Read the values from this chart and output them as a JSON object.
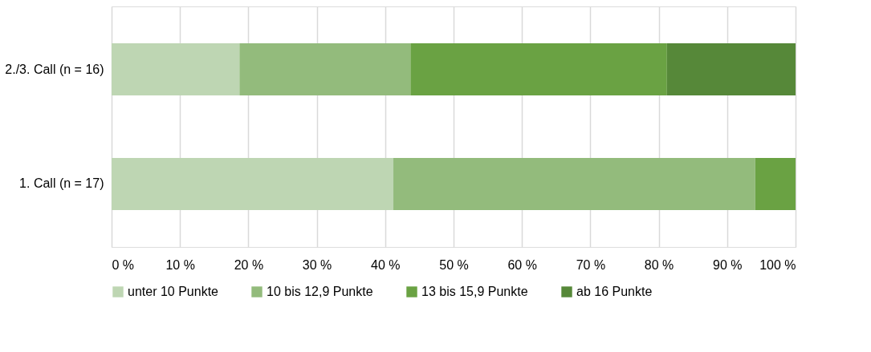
{
  "chart_data": {
    "type": "bar",
    "orientation": "horizontal",
    "stacked": true,
    "categories": [
      "2./3. Call (n = 16)",
      "1. Call (n = 17)"
    ],
    "series": [
      {
        "name": "unter 10 Punkte",
        "color": "#bed6b3",
        "values": [
          18.7,
          41.2
        ]
      },
      {
        "name": "10 bis 12,9 Punkte",
        "color": "#93bb7c",
        "values": [
          25.0,
          52.9
        ]
      },
      {
        "name": "13 bis 15,9 Punkte",
        "color": "#6aa243",
        "values": [
          37.5,
          5.9
        ]
      },
      {
        "name": "ab 16 Punkte",
        "color": "#568839",
        "values": [
          18.8,
          0
        ]
      }
    ],
    "xlim": [
      0,
      100
    ],
    "xticks": [
      {
        "value": 0,
        "label": "0 %"
      },
      {
        "value": 10,
        "label": "10 %"
      },
      {
        "value": 20,
        "label": "20 %"
      },
      {
        "value": 30,
        "label": "30 %"
      },
      {
        "value": 40,
        "label": "40 %"
      },
      {
        "value": 50,
        "label": "50 %"
      },
      {
        "value": 60,
        "label": "60 %"
      },
      {
        "value": 70,
        "label": "70 %"
      },
      {
        "value": 80,
        "label": "80 %"
      },
      {
        "value": 90,
        "label": "90 %"
      },
      {
        "value": 100,
        "label": "100 %"
      }
    ],
    "grid": "x",
    "legend": "bottom"
  }
}
